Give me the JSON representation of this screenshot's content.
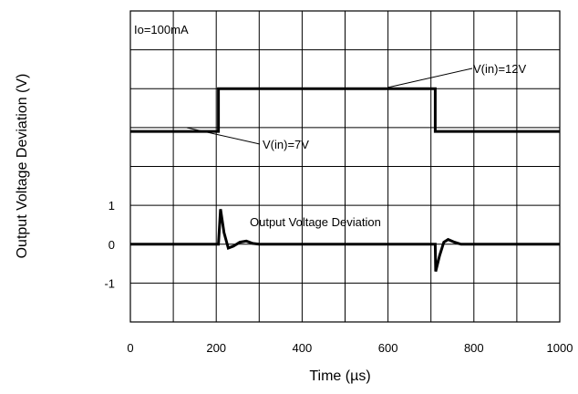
{
  "chart_data": {
    "type": "line",
    "xlabel": "Time (µs)",
    "ylabel": "Output Voltage Deviation (V)",
    "xlim": [
      0,
      1000
    ],
    "x_ticks": [
      0,
      200,
      400,
      600,
      800,
      1000
    ],
    "ylim": [
      -2,
      6
    ],
    "y_ticks": [
      -1,
      0,
      1
    ],
    "grid": true,
    "condition_label": "Io=100mA",
    "annotations": {
      "input_high": "V(in)=12V",
      "input_low": "V(in)=7V",
      "output": "Output Voltage Deviation"
    },
    "series": [
      {
        "role": "input_step",
        "points": [
          [
            0,
            2.9
          ],
          [
            205,
            2.9
          ],
          [
            205,
            4.0
          ],
          [
            710,
            4.0
          ],
          [
            710,
            2.9
          ],
          [
            1000,
            2.9
          ]
        ]
      },
      {
        "role": "output_deviation",
        "points": [
          [
            0,
            0
          ],
          [
            205,
            0
          ],
          [
            210,
            0.9
          ],
          [
            218,
            0.3
          ],
          [
            228,
            -0.1
          ],
          [
            240,
            -0.05
          ],
          [
            255,
            0.05
          ],
          [
            270,
            0.08
          ],
          [
            285,
            0.02
          ],
          [
            300,
            0
          ],
          [
            710,
            0
          ],
          [
            711,
            -0.7
          ],
          [
            720,
            -0.3
          ],
          [
            730,
            0.05
          ],
          [
            740,
            0.12
          ],
          [
            755,
            0.05
          ],
          [
            770,
            0
          ],
          [
            1000,
            0
          ]
        ]
      }
    ]
  }
}
